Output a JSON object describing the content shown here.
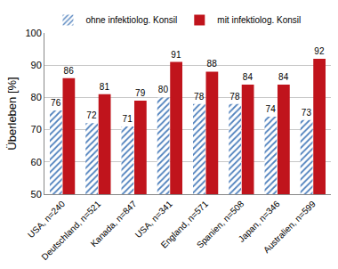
{
  "chart_data": {
    "type": "bar",
    "categories": [
      "USA, n=240",
      "Deutschland, n=521",
      "Kanada, n=847",
      "USA, n=341",
      "England, n=571",
      "Spanien, n=508",
      "Japan, n=346",
      "Australien, n=599"
    ],
    "series": [
      {
        "name": "ohne infektiolog. Konsil",
        "color": "#4f81bd",
        "marker": "hatched",
        "values": [
          76,
          72,
          71,
          80,
          78,
          78,
          74,
          73
        ]
      },
      {
        "name": "mit infektiolog. Konsil",
        "color": "#c0141c",
        "marker": "solid",
        "values": [
          86,
          81,
          79,
          91,
          88,
          84,
          84,
          92
        ]
      }
    ],
    "y_label": "Überleben [%]",
    "ylim": [
      50,
      100
    ],
    "yticks": [
      50,
      60,
      70,
      80,
      90,
      100
    ],
    "grid": true,
    "legend": "top",
    "data_labels": true
  }
}
